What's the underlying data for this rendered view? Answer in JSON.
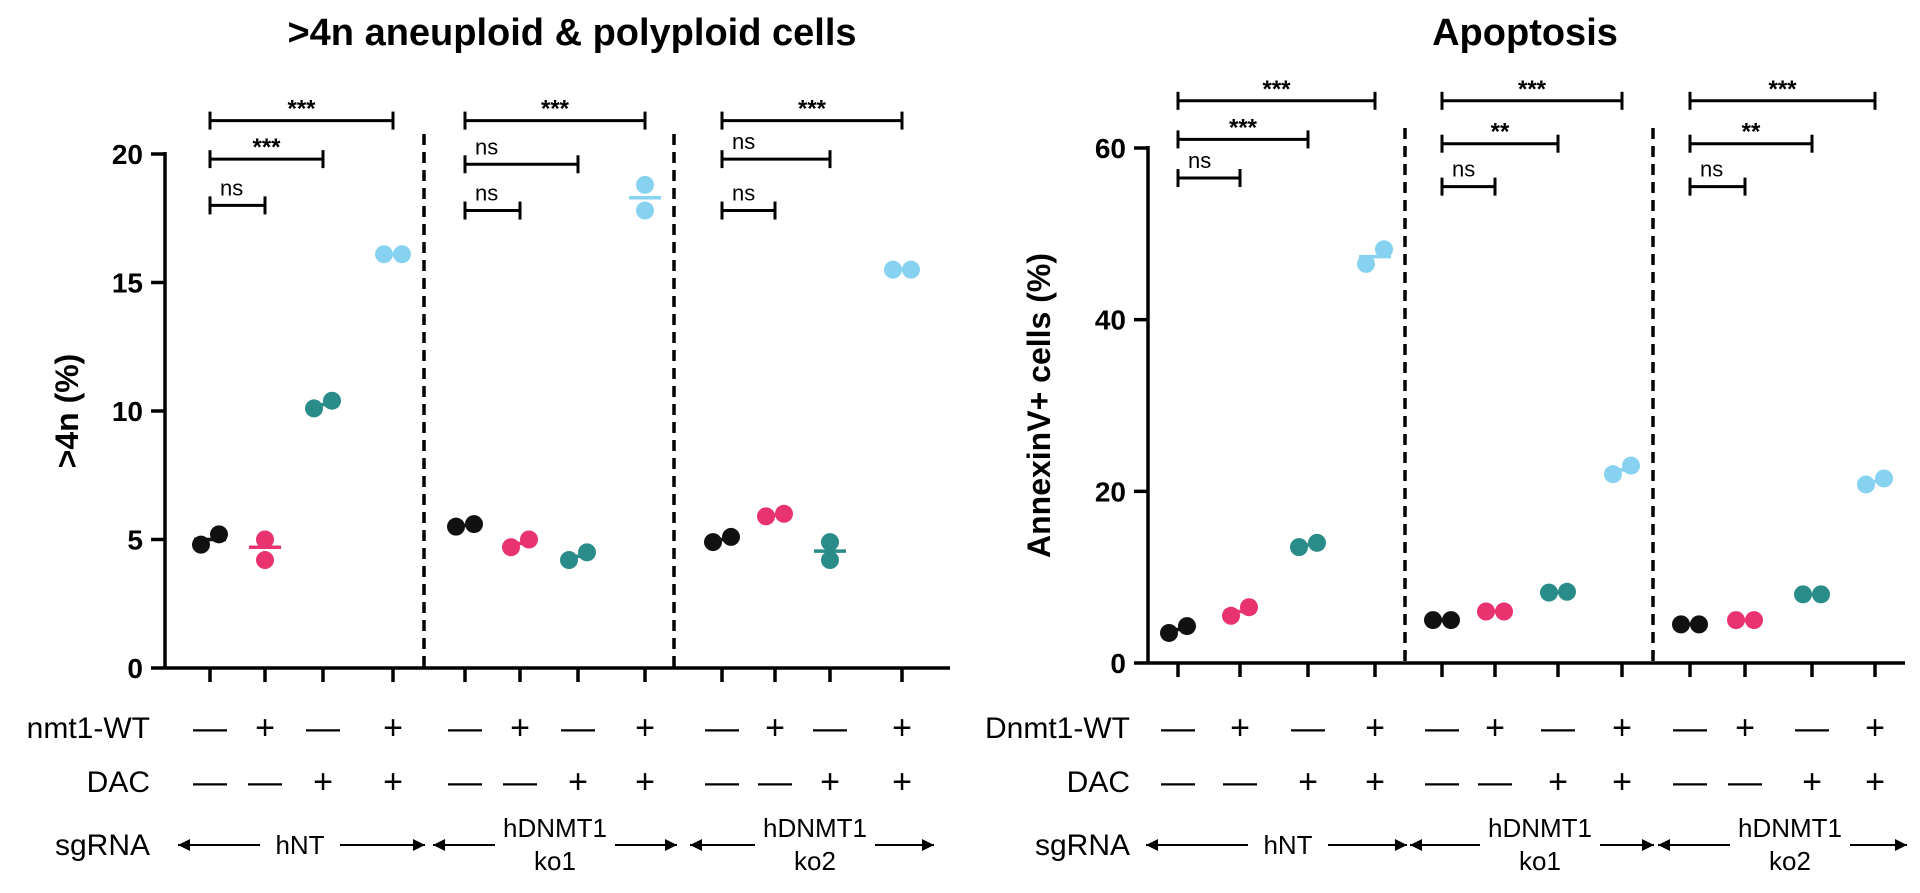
{
  "colors": {
    "dnmt1_neg_dac_neg": "#111111",
    "dnmt1_pos_dac_neg": "#e8336f",
    "dnmt1_neg_dac_pos": "#2a8c89",
    "dnmt1_pos_dac_pos": "#87d2f0",
    "axis": "#000000"
  },
  "row_labels": {
    "dnmt1": "nmt1-WT",
    "dnmt1_right": "Dnmt1-WT",
    "dac": "DAC",
    "sgrna": "sgRNA"
  },
  "conditions": {
    "dnmt1": [
      "—",
      "+",
      "—",
      "+"
    ],
    "dac": [
      "—",
      "—",
      "+",
      "+"
    ]
  },
  "groups": [
    {
      "id": "hNT",
      "lines": [
        "hNT"
      ]
    },
    {
      "id": "ko1",
      "lines": [
        "hDNMT1",
        "ko1"
      ]
    },
    {
      "id": "ko2",
      "lines": [
        "hDNMT1",
        "ko2"
      ]
    }
  ],
  "chart_data": [
    {
      "type": "scatter",
      "title": ">4n aneuploid & polyploid cells",
      "ylabel": ">4n (%)",
      "ylim": [
        0,
        20
      ],
      "yticks": [
        "0",
        "5",
        "10",
        "15",
        "20"
      ],
      "points_per_condition": 2,
      "groups": [
        {
          "group": "hNT",
          "values": [
            [
              4.8,
              5.2
            ],
            [
              4.2,
              5.0
            ],
            [
              10.1,
              10.4
            ],
            [
              16.1,
              16.1
            ]
          ],
          "means": [
            5.0,
            4.7,
            10.25,
            16.1
          ]
        },
        {
          "group": "ko1",
          "values": [
            [
              5.5,
              5.6
            ],
            [
              4.7,
              5.0
            ],
            [
              4.2,
              4.5
            ],
            [
              17.8,
              18.8
            ]
          ],
          "means": [
            5.55,
            4.85,
            4.35,
            18.3
          ]
        },
        {
          "group": "ko2",
          "values": [
            [
              4.9,
              5.1
            ],
            [
              5.9,
              6.0
            ],
            [
              4.2,
              4.9
            ],
            [
              15.5,
              15.5
            ]
          ],
          "means": [
            5.0,
            5.95,
            4.55,
            15.5
          ]
        }
      ],
      "significance": [
        {
          "group": "hNT",
          "brackets": [
            {
              "label": "ns",
              "to": 1,
              "y": 18.0
            },
            {
              "label": "***",
              "to": 2,
              "y": 19.8
            },
            {
              "label": "***",
              "to": 3,
              "y": 21.3
            }
          ]
        },
        {
          "group": "ko1",
          "brackets": [
            {
              "label": "ns",
              "to": 1,
              "y": 17.8
            },
            {
              "label": "ns",
              "to": 2,
              "y": 19.6
            },
            {
              "label": "***",
              "to": 3,
              "y": 21.3
            }
          ]
        },
        {
          "group": "ko2",
          "brackets": [
            {
              "label": "ns",
              "to": 1,
              "y": 17.8
            },
            {
              "label": "ns",
              "to": 2,
              "y": 19.8
            },
            {
              "label": "***",
              "to": 3,
              "y": 21.3
            }
          ]
        }
      ]
    },
    {
      "type": "scatter",
      "title": "Apoptosis",
      "ylabel": "AnnexinV+ cells (%)",
      "ylim": [
        0,
        60
      ],
      "yticks": [
        "0",
        "20",
        "40",
        "60"
      ],
      "points_per_condition": 2,
      "groups": [
        {
          "group": "hNT",
          "values": [
            [
              3.5,
              4.3
            ],
            [
              5.5,
              6.5
            ],
            [
              13.5,
              14.0
            ],
            [
              46.5,
              48.2
            ]
          ],
          "means": [
            3.9,
            6.0,
            13.75,
            47.35
          ]
        },
        {
          "group": "ko1",
          "values": [
            [
              5.0,
              5.0
            ],
            [
              6.0,
              6.0
            ],
            [
              8.2,
              8.3
            ],
            [
              22.0,
              23.0
            ]
          ],
          "means": [
            5.0,
            6.0,
            8.25,
            22.5
          ]
        },
        {
          "group": "ko2",
          "values": [
            [
              4.5,
              4.5
            ],
            [
              5.0,
              5.0
            ],
            [
              8.0,
              8.0
            ],
            [
              20.8,
              21.5
            ]
          ],
          "means": [
            4.5,
            5.0,
            8.0,
            21.15
          ]
        }
      ],
      "significance": [
        {
          "group": "hNT",
          "brackets": [
            {
              "label": "ns",
              "to": 1,
              "y": 56.5
            },
            {
              "label": "***",
              "to": 2,
              "y": 61.0
            },
            {
              "label": "***",
              "to": 3,
              "y": 65.5
            }
          ]
        },
        {
          "group": "ko1",
          "brackets": [
            {
              "label": "ns",
              "to": 1,
              "y": 55.5
            },
            {
              "label": "**",
              "to": 2,
              "y": 60.5
            },
            {
              "label": "***",
              "to": 3,
              "y": 65.5
            }
          ]
        },
        {
          "group": "ko2",
          "brackets": [
            {
              "label": "ns",
              "to": 1,
              "y": 55.5
            },
            {
              "label": "**",
              "to": 2,
              "y": 60.5
            },
            {
              "label": "***",
              "to": 3,
              "y": 65.5
            }
          ]
        }
      ]
    }
  ]
}
